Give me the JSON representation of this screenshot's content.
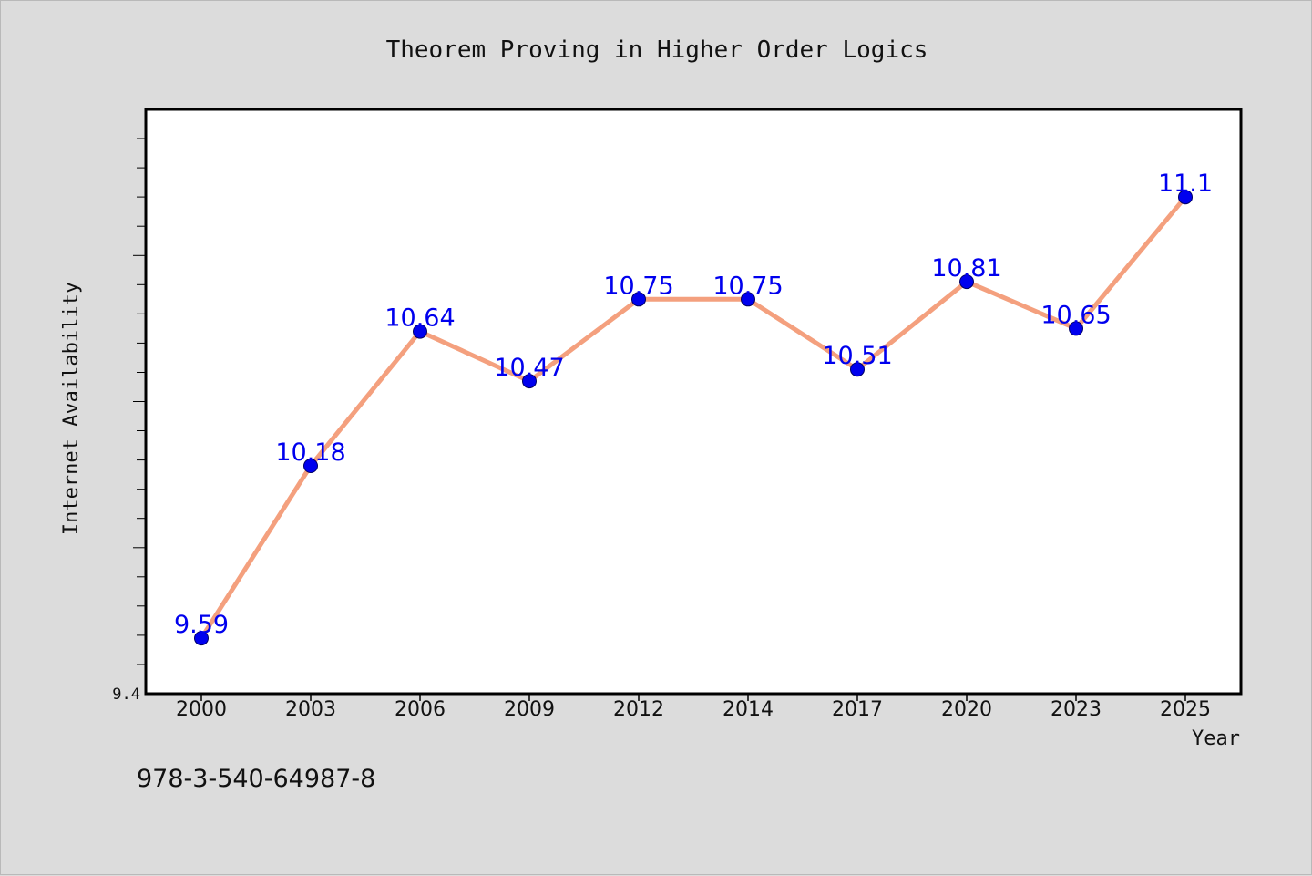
{
  "chart_data": {
    "type": "line",
    "title": "Theorem Proving in Higher Order Logics",
    "xlabel": "Year",
    "ylabel": "Internet Availability",
    "categories": [
      "2000",
      "2003",
      "2006",
      "2009",
      "2012",
      "2014",
      "2017",
      "2020",
      "2023",
      "2025"
    ],
    "series": [
      {
        "values": [
          9.59,
          10.18,
          10.64,
          10.47,
          10.75,
          10.75,
          10.51,
          10.81,
          10.65,
          11.1
        ],
        "data_labels": [
          "9.59",
          "10.18",
          "10.64",
          "10.47",
          "10.75",
          "10.75",
          "10.51",
          "10.81",
          "10.65",
          "11.1"
        ]
      }
    ],
    "ylim": [
      9.4,
      11.4
    ],
    "y_tick_labels": [
      "9.4"
    ],
    "grid": false,
    "legend": "none"
  },
  "footer_text": "978-3-540-64987-8",
  "colors": {
    "line": "#f4a07e",
    "marker": "#0000ee",
    "data_label": "#0000ee",
    "plot_bg": "#ffffff",
    "page_bg": "#dcdcdc"
  }
}
